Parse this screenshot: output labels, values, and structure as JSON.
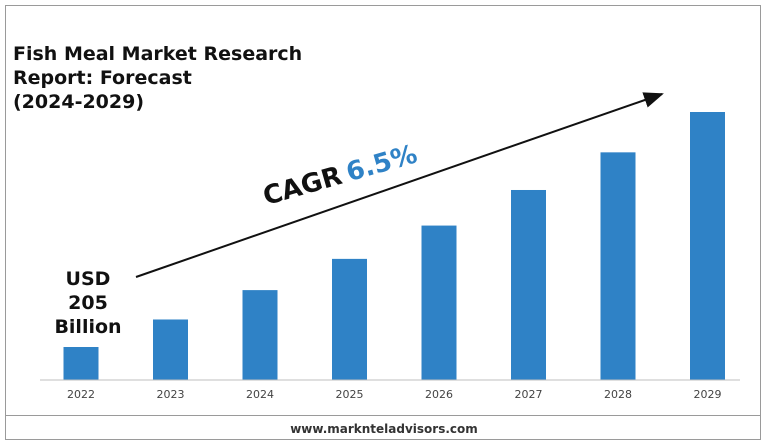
{
  "title_lines": [
    "Fish Meal Market Research",
    "Report: Forecast",
    "(2024-2029)"
  ],
  "start_value_lines": [
    "USD",
    "205",
    "Billion"
  ],
  "cagr": {
    "label": "CAGR",
    "value": "6.5%"
  },
  "footer": "www.marknteladvisors.com",
  "colors": {
    "bar": "#2f82c6",
    "accent": "#2f82c6"
  },
  "chart_data": {
    "type": "bar",
    "categories": [
      "2022",
      "2023",
      "2024",
      "2025",
      "2026",
      "2027",
      "2028",
      "2029"
    ],
    "values": [
      205,
      218.3,
      232.5,
      247.6,
      263.7,
      280.9,
      299.1,
      318.6
    ],
    "title": "Fish Meal Market Research Report: Forecast (2024-2029)",
    "xlabel": "",
    "ylabel": "",
    "annotations": [
      "USD 205 Billion",
      "CAGR 6.5%"
    ],
    "grid": false,
    "legend": "none"
  }
}
